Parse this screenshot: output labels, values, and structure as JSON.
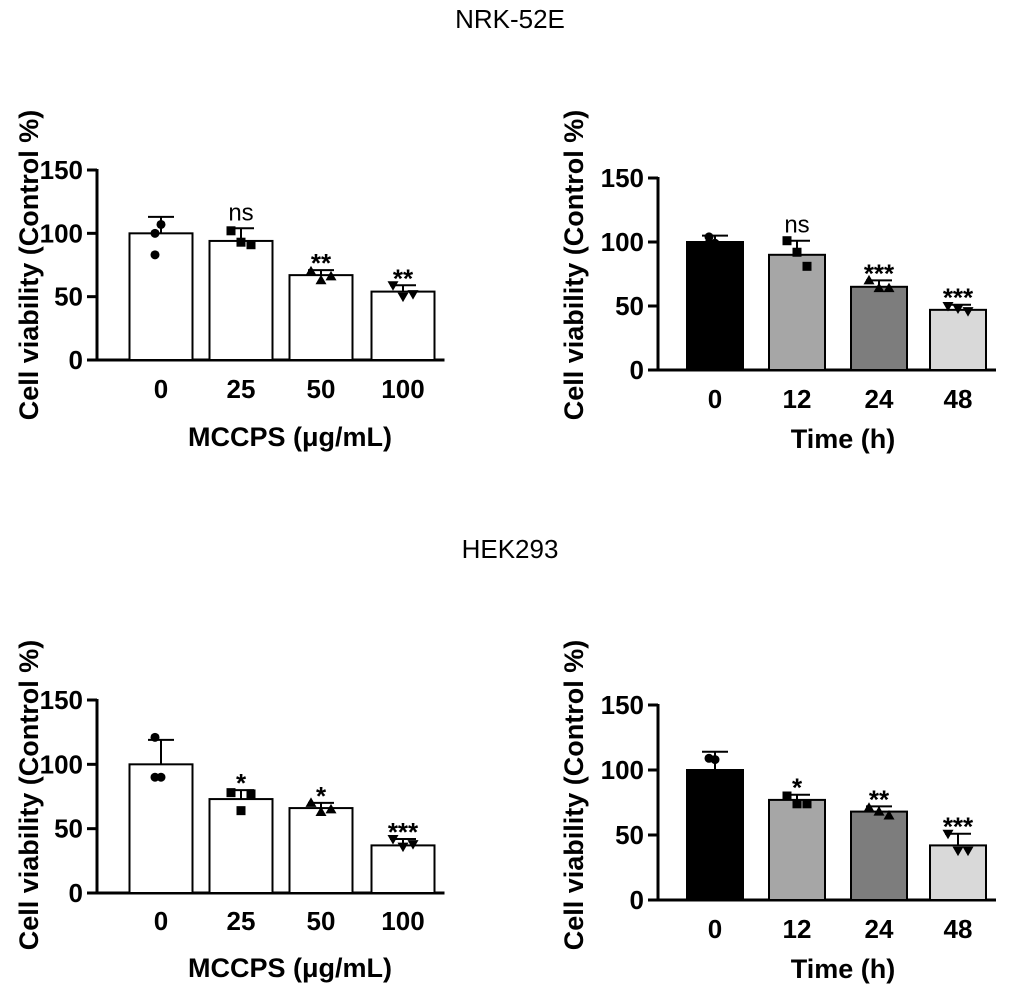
{
  "figure": {
    "section_titles": [
      "NRK-52E",
      "HEK293"
    ]
  },
  "chart_data": [
    {
      "type": "bar",
      "group": "NRK-52E",
      "xlabel": "MCCPS (μg/mL)",
      "ylabel": "Cell viability (Control %)",
      "categories": [
        "0",
        "25",
        "50",
        "100"
      ],
      "values": [
        100,
        94,
        67,
        54
      ],
      "errors": [
        13,
        10,
        4,
        5
      ],
      "points": [
        [
          100,
          107,
          83
        ],
        [
          102,
          93,
          91
        ],
        [
          70,
          63,
          66
        ],
        [
          59,
          50,
          52
        ]
      ],
      "marker": "square",
      "significance": [
        "",
        "ns",
        "**",
        "**"
      ],
      "colors": [
        "#ffffff",
        "#ffffff",
        "#ffffff",
        "#ffffff"
      ],
      "ylim": [
        0,
        150
      ],
      "yticks": [
        0,
        50,
        100,
        150
      ]
    },
    {
      "type": "bar",
      "group": "NRK-52E",
      "xlabel": "Time (h)",
      "ylabel": "Cell viability (Control %)",
      "categories": [
        "0",
        "12",
        "24",
        "48"
      ],
      "values": [
        100,
        90,
        65,
        47
      ],
      "errors": [
        5,
        11,
        5,
        4
      ],
      "points": [
        [
          104,
          99,
          99
        ],
        [
          101,
          92,
          81
        ],
        [
          70,
          64,
          64
        ],
        [
          50,
          48,
          46
        ]
      ],
      "marker": "triangle",
      "significance": [
        "",
        "ns",
        "***",
        "***"
      ],
      "colors": [
        "#000000",
        "#a6a6a6",
        "#7d7d7d",
        "#d9d9d9"
      ],
      "ylim": [
        0,
        150
      ],
      "yticks": [
        0,
        50,
        100,
        150
      ]
    },
    {
      "type": "bar",
      "group": "HEK293",
      "xlabel": "MCCPS (μg/mL)",
      "ylabel": "Cell viability (Control %)",
      "categories": [
        "0",
        "25",
        "50",
        "100"
      ],
      "values": [
        100,
        73,
        66,
        37
      ],
      "errors": [
        19,
        7,
        4,
        5
      ],
      "points": [
        [
          121,
          90,
          90
        ],
        [
          78,
          64,
          77
        ],
        [
          70,
          63,
          65
        ],
        [
          42,
          36,
          38
        ]
      ],
      "marker": "square",
      "significance": [
        "",
        "*",
        "*",
        "***"
      ],
      "colors": [
        "#ffffff",
        "#ffffff",
        "#ffffff",
        "#ffffff"
      ],
      "ylim": [
        0,
        150
      ],
      "yticks": [
        0,
        50,
        100,
        150
      ]
    },
    {
      "type": "bar",
      "group": "HEK293",
      "xlabel": "Time (h)",
      "ylabel": "Cell viability (Control %)",
      "categories": [
        "0",
        "12",
        "24",
        "48"
      ],
      "values": [
        100,
        77,
        68,
        42
      ],
      "errors": [
        14,
        4,
        4,
        9
      ],
      "points": [
        [
          109,
          108,
          94
        ],
        [
          80,
          74,
          74
        ],
        [
          71,
          68,
          65
        ],
        [
          51,
          38,
          38
        ]
      ],
      "marker": "triangle",
      "significance": [
        "",
        "*",
        "**",
        "***"
      ],
      "colors": [
        "#000000",
        "#a6a6a6",
        "#7d7d7d",
        "#d9d9d9"
      ],
      "ylim": [
        0,
        150
      ],
      "yticks": [
        0,
        50,
        100,
        150
      ]
    }
  ]
}
